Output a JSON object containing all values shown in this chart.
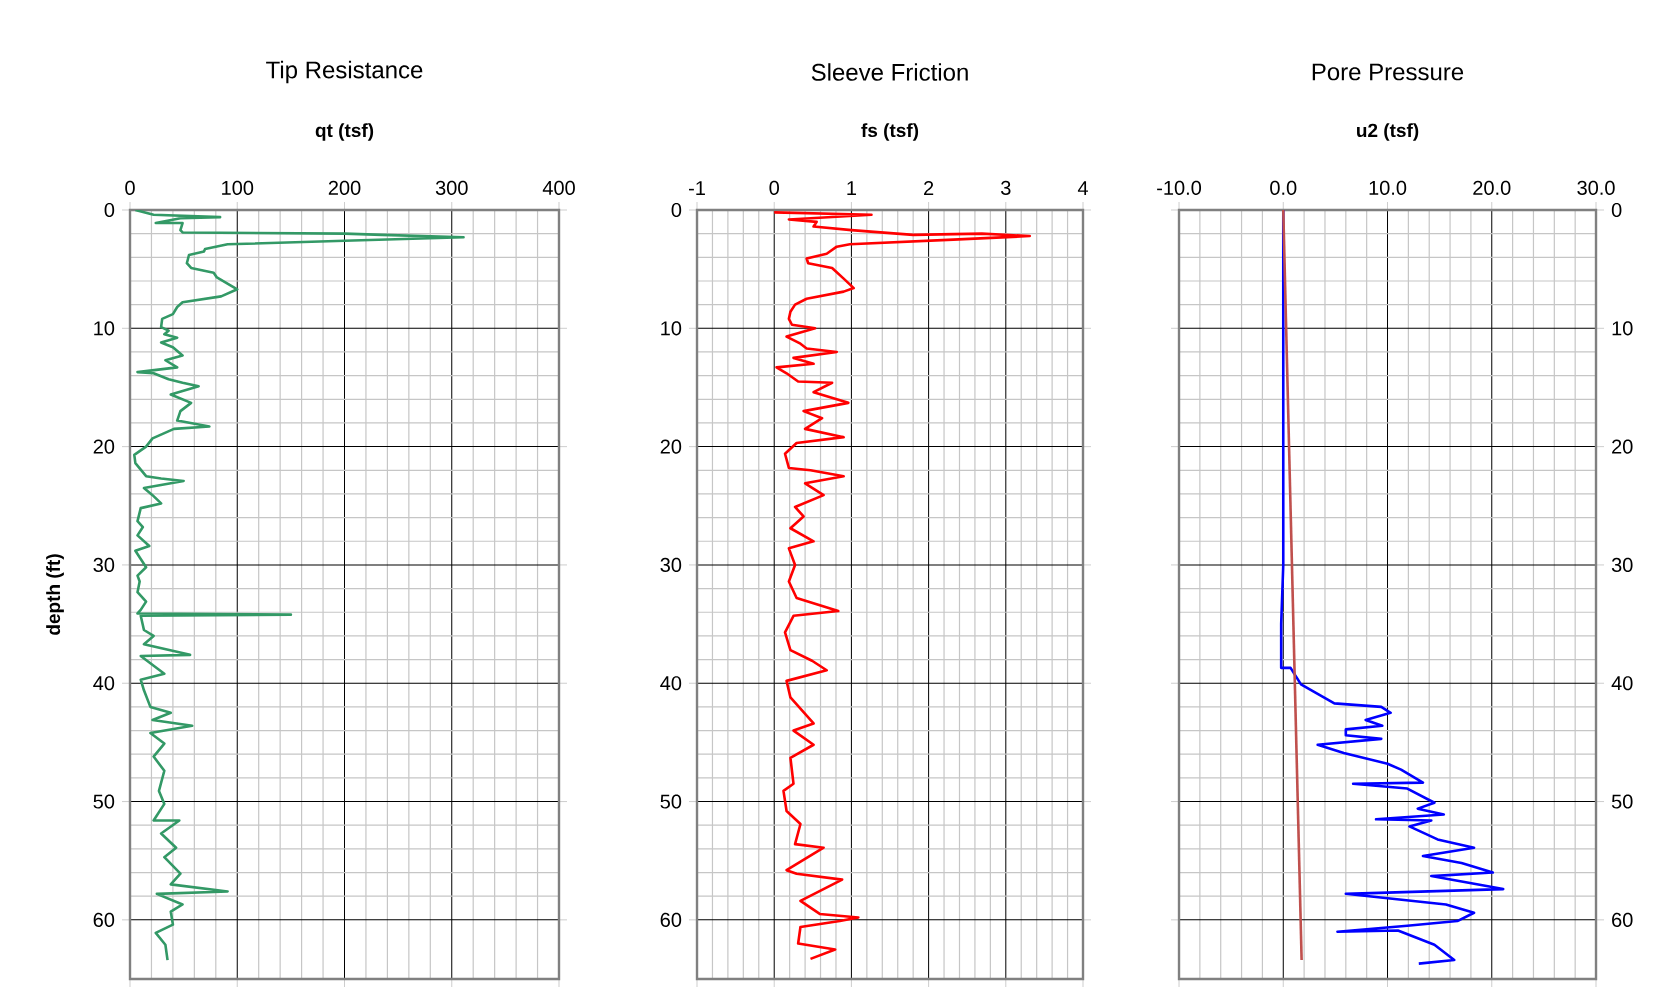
{
  "chart_data": [
    {
      "type": "line",
      "title": "Tip Resistance",
      "xlabel": "qt (tsf)",
      "ylabel": "depth (ft)",
      "xlim": [
        0,
        400
      ],
      "xticks": [
        0,
        100,
        200,
        300,
        400
      ],
      "ylim": [
        65,
        0
      ],
      "yticks": [
        0,
        10,
        20,
        30,
        40,
        50,
        60
      ],
      "grid": true,
      "series": [
        {
          "color": "#339966",
          "x": [
            5,
            22,
            84,
            47,
            24,
            49,
            47,
            49,
            200,
            235,
            311,
            200,
            91,
            70,
            69,
            55,
            53,
            57,
            78,
            81,
            100,
            85,
            49,
            44,
            40,
            30,
            29,
            36,
            32,
            44,
            29,
            40,
            49,
            33,
            44,
            7,
            22,
            36,
            49,
            64,
            38,
            57,
            47,
            44,
            74,
            41,
            21,
            15,
            4,
            5,
            15,
            29,
            50,
            13,
            21,
            29,
            10,
            7,
            12,
            7,
            18,
            5,
            10,
            15,
            7,
            9,
            7,
            15,
            10,
            7,
            150,
            10,
            13,
            22,
            13,
            56,
            10,
            32,
            10,
            13,
            19,
            38,
            21,
            58,
            19,
            32,
            22,
            32,
            27,
            32,
            22,
            46,
            29,
            43,
            32,
            47,
            38,
            91,
            25,
            49,
            38,
            40,
            24,
            33,
            35
          ],
          "values": [
            0,
            0.4,
            0.6,
            0.7,
            1.1,
            1.1,
            1.7,
            1.9,
            2.0,
            2.1,
            2.3,
            2.6,
            2.9,
            3.3,
            3.5,
            3.8,
            4.5,
            4.9,
            5.3,
            5.7,
            6.7,
            7.3,
            7.8,
            8.2,
            8.8,
            9.2,
            9.9,
            10.2,
            10.5,
            10.8,
            11.2,
            11.6,
            12.3,
            12.7,
            13.3,
            13.7,
            13.8,
            14.3,
            14.6,
            14.9,
            15.6,
            16.3,
            17.0,
            17.8,
            18.3,
            18.5,
            19.3,
            20.0,
            20.7,
            21.4,
            22.5,
            22.7,
            22.9,
            23.5,
            24.1,
            24.8,
            25.2,
            26.3,
            26.8,
            27.5,
            28.4,
            28.8,
            29.5,
            30.2,
            30.9,
            31.4,
            32.3,
            33.1,
            33.8,
            34.1,
            34.2,
            34.3,
            35.5,
            36.0,
            36.7,
            37.6,
            37.7,
            39.2,
            39.7,
            40.6,
            42.0,
            42.5,
            43.1,
            43.6,
            44.2,
            45.1,
            46.2,
            47.4,
            49.1,
            50.2,
            51.6,
            51.6,
            52.7,
            53.9,
            54.7,
            56.1,
            57.0,
            57.6,
            57.8,
            58.7,
            59.3,
            60.4,
            61.1,
            62.1,
            63.4
          ]
        }
      ]
    },
    {
      "type": "line",
      "title": "Sleeve Friction",
      "xlabel": "fs (tsf)",
      "xlim": [
        -1,
        4
      ],
      "xticks": [
        -1,
        0,
        1,
        2,
        3,
        4
      ],
      "ylim": [
        65,
        0
      ],
      "yticks": [
        0,
        10,
        20,
        30,
        40,
        50,
        60
      ],
      "grid": true,
      "series": [
        {
          "color": "#ff0000",
          "x": [
            0,
            1.26,
            0.19,
            0.55,
            0.51,
            1.0,
            1.8,
            2.69,
            3.31,
            2.32,
            0.98,
            0.81,
            0.68,
            0.42,
            0.44,
            0.75,
            0.9,
            1.03,
            0.9,
            0.42,
            0.27,
            0.21,
            0.19,
            0.23,
            0.53,
            0.16,
            0.34,
            0.42,
            0.81,
            0.25,
            0.51,
            0.03,
            0.16,
            0.31,
            0.75,
            0.51,
            0.96,
            0.38,
            0.62,
            0.4,
            0.9,
            0.29,
            0.14,
            0.19,
            0.47,
            0.9,
            0.4,
            0.64,
            0.27,
            0.38,
            0.21,
            0.51,
            0.19,
            0.27,
            0.19,
            0.29,
            0.83,
            0.25,
            0.14,
            0.21,
            0.49,
            0.68,
            0.16,
            0.21,
            0.51,
            0.25,
            0.51,
            0.21,
            0.25,
            0.12,
            0.16,
            0.34,
            0.27,
            0.64,
            0.16,
            0.29,
            0.88,
            0.34,
            0.59,
            1.09,
            0.85,
            0.34,
            0.31,
            0.79,
            0.47
          ],
          "values": [
            0.2,
            0.4,
            0.8,
            1.0,
            1.4,
            1.7,
            2.1,
            2.0,
            2.2,
            2.5,
            2.9,
            3.1,
            3.7,
            4.1,
            4.5,
            4.9,
            5.8,
            6.6,
            6.9,
            7.5,
            8.0,
            8.6,
            9.2,
            9.7,
            10.0,
            10.7,
            11.3,
            11.7,
            12.0,
            12.5,
            13.0,
            13.3,
            13.8,
            14.5,
            14.6,
            15.4,
            16.3,
            17.0,
            17.6,
            18.5,
            19.2,
            19.7,
            20.6,
            21.8,
            22.0,
            22.5,
            23.1,
            24.1,
            25.1,
            25.9,
            26.9,
            28.0,
            28.6,
            30.0,
            31.4,
            32.8,
            33.9,
            34.3,
            35.7,
            37.2,
            38.1,
            38.9,
            39.8,
            41.2,
            43.4,
            44.0,
            45.2,
            46.3,
            48.5,
            49.1,
            50.8,
            51.9,
            53.6,
            53.9,
            55.8,
            56.1,
            56.6,
            58.4,
            59.5,
            59.8,
            60.1,
            60.6,
            62.0,
            62.5,
            63.3
          ]
        }
      ]
    },
    {
      "type": "line",
      "title": "Pore Pressure",
      "xlabel": "u2 (tsf)",
      "xlim": [
        -10,
        30
      ],
      "xticks": [
        {
          "value": -10,
          "label": "-10.0"
        },
        {
          "value": 0,
          "label": "0.0"
        },
        {
          "value": 10,
          "label": "10.0"
        },
        {
          "value": 20,
          "label": "20.0"
        },
        {
          "value": 30,
          "label": "30.0"
        }
      ],
      "y2lim": [
        65,
        0
      ],
      "y2ticks": [
        0,
        10,
        20,
        30,
        40,
        50,
        60
      ],
      "grid": true,
      "series": [
        {
          "axis": "y2",
          "color": "#0000ff",
          "x": [
            0,
            0,
            -0.2,
            -0.2,
            0.7,
            1.7,
            4.9,
            9.4,
            10.3,
            7.9,
            9.5,
            6.0,
            6.0,
            9.4,
            3.3,
            5.8,
            10,
            11.3,
            13.4,
            6.7,
            11.9,
            14.5,
            12.9,
            15.4,
            8.9,
            14.2,
            12.1,
            14.8,
            18.3,
            13.4,
            17.1,
            20.1,
            14.2,
            19.9,
            21.1,
            6.0,
            15.6,
            18.3,
            16.7,
            11.9,
            5.2,
            11.0,
            14.5,
            16.4,
            13.0
          ],
          "values": [
            0,
            30,
            35,
            38.7,
            38.7,
            40.1,
            41.7,
            42.0,
            42.5,
            43.1,
            43.6,
            43.9,
            44.4,
            44.7,
            45.2,
            45.9,
            46.8,
            47.3,
            48.4,
            48.5,
            48.9,
            50.1,
            50.6,
            51.1,
            51.5,
            51.6,
            52.1,
            53.2,
            53.9,
            54.6,
            55.2,
            56.0,
            56.3,
            57.2,
            57.4,
            57.8,
            58.7,
            59.4,
            60.1,
            60.5,
            61.0,
            60.9,
            62.1,
            63.4,
            63.7
          ]
        },
        {
          "axis": "y2",
          "color": "#c0504d",
          "x": [
            0,
            1.76
          ],
          "values": [
            0,
            63.4
          ]
        }
      ]
    }
  ]
}
